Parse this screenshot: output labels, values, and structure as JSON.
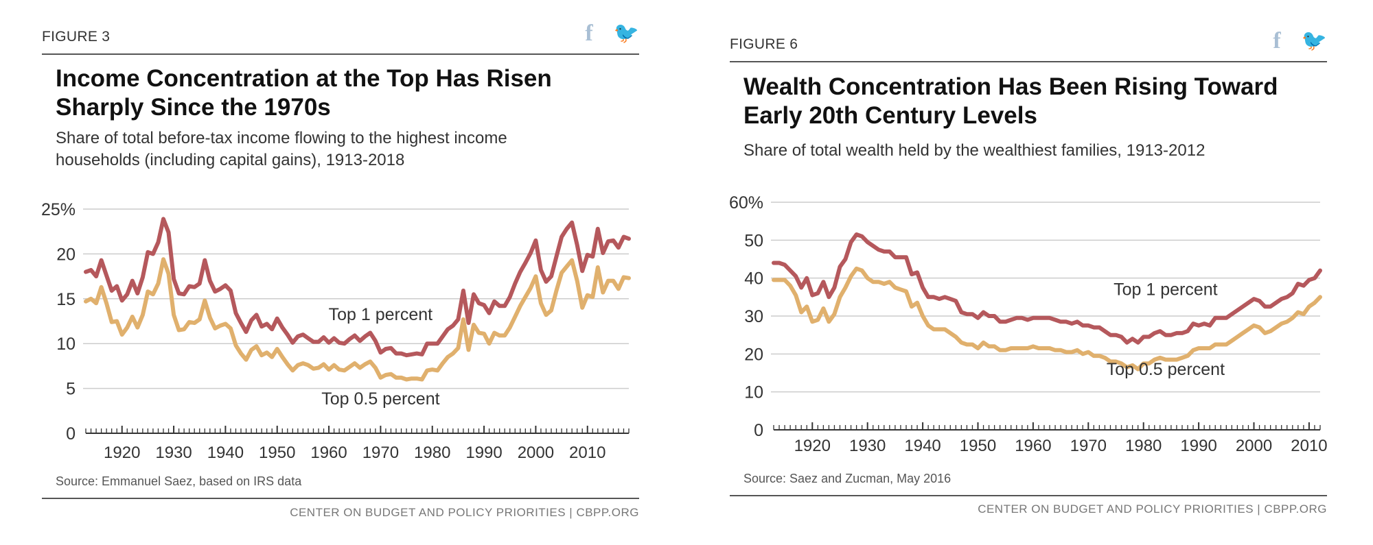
{
  "figures": [
    {
      "label": "FIGURE 3",
      "title": "Income Concentration at the Top Has Risen Sharply Since the 1970s",
      "subtitle": "Share of total before-tax income flowing to the highest income households (including capital gains), 1913-2018",
      "source": "Source: Emmanuel Saez, based on IRS data",
      "footer": "CENTER ON BUDGET AND POLICY PRIORITIES | CBPP.ORG"
    },
    {
      "label": "FIGURE 6",
      "title": "Wealth Concentration Has Been Rising Toward Early 20th Century Levels",
      "subtitle": "Share of total wealth held by the wealthiest families, 1913-2012",
      "source": "Source: Saez and Zucman, May 2016",
      "footer": "CENTER ON BUDGET AND POLICY PRIORITIES | CBPP.ORG"
    }
  ],
  "share_icons": {
    "facebook": "f",
    "twitter": "🐦"
  },
  "colors": {
    "top1": "#b5585c",
    "top05": "#e0b06d",
    "grid": "#cccccc",
    "axis": "#333333",
    "share_icon": "#a9bfd4"
  },
  "chart_data": [
    {
      "type": "line",
      "title": "Income Concentration at the Top Has Risen Sharply Since the 1970s",
      "subtitle": "Share of total before-tax income flowing to the highest income households (including capital gains), 1913-2018",
      "xlabel": "",
      "ylabel": "",
      "xlim": [
        1913,
        2018
      ],
      "ylim": [
        0,
        25
      ],
      "yticks": [
        0,
        5,
        10,
        15,
        20,
        25
      ],
      "ytick_labels": [
        "0",
        "5",
        "10",
        "15",
        "20",
        "25%"
      ],
      "xticks": [
        1920,
        1930,
        1940,
        1950,
        1960,
        1970,
        1980,
        1990,
        2000,
        2010
      ],
      "xtick_labels": [
        "1920",
        "1930",
        "1940",
        "1950",
        "1960",
        "1970",
        "1980",
        "1990",
        "2000",
        "2010"
      ],
      "grid": true,
      "series": [
        {
          "name": "Top 1 percent",
          "x": [
            1913,
            1914,
            1915,
            1916,
            1917,
            1918,
            1919,
            1920,
            1921,
            1922,
            1923,
            1924,
            1925,
            1926,
            1927,
            1928,
            1929,
            1930,
            1931,
            1932,
            1933,
            1934,
            1935,
            1936,
            1937,
            1938,
            1939,
            1940,
            1941,
            1942,
            1943,
            1944,
            1945,
            1946,
            1947,
            1948,
            1949,
            1950,
            1951,
            1952,
            1953,
            1954,
            1955,
            1956,
            1957,
            1958,
            1959,
            1960,
            1961,
            1962,
            1963,
            1964,
            1965,
            1966,
            1967,
            1968,
            1969,
            1970,
            1971,
            1972,
            1973,
            1974,
            1975,
            1976,
            1977,
            1978,
            1979,
            1980,
            1981,
            1982,
            1983,
            1984,
            1985,
            1986,
            1987,
            1988,
            1989,
            1990,
            1991,
            1992,
            1993,
            1994,
            1995,
            1996,
            1997,
            1998,
            1999,
            2000,
            2001,
            2002,
            2003,
            2004,
            2005,
            2006,
            2007,
            2008,
            2009,
            2010,
            2011,
            2012,
            2013,
            2014,
            2015,
            2016,
            2017,
            2018
          ],
          "y": [
            18.0,
            18.2,
            17.5,
            19.3,
            17.6,
            15.9,
            16.4,
            14.8,
            15.5,
            17.0,
            15.6,
            17.4,
            20.2,
            20.0,
            21.3,
            23.9,
            22.4,
            17.2,
            15.6,
            15.5,
            16.4,
            16.3,
            16.7,
            19.3,
            17.0,
            15.8,
            16.1,
            16.5,
            15.9,
            13.4,
            12.3,
            11.3,
            12.6,
            13.2,
            11.9,
            12.2,
            11.6,
            12.8,
            11.8,
            11.0,
            10.1,
            10.8,
            11.0,
            10.6,
            10.2,
            10.2,
            10.7,
            10.1,
            10.6,
            10.1,
            10.0,
            10.5,
            10.9,
            10.3,
            10.8,
            11.2,
            10.3,
            9.0,
            9.4,
            9.5,
            8.9,
            8.9,
            8.7,
            8.8,
            8.9,
            8.8,
            10.0,
            10.0,
            10.0,
            10.8,
            11.6,
            12.0,
            12.7,
            15.9,
            12.3,
            15.5,
            14.5,
            14.3,
            13.4,
            14.7,
            14.2,
            14.2,
            15.2,
            16.7,
            18.0,
            19.0,
            20.1,
            21.5,
            18.2,
            16.9,
            17.5,
            19.7,
            21.9,
            22.8,
            23.5,
            21.0,
            18.1,
            19.9,
            19.7,
            22.8,
            20.1,
            21.4,
            21.5,
            20.7,
            21.9,
            21.7
          ]
        },
        {
          "name": "Top 0.5 percent",
          "x": [
            1913,
            1914,
            1915,
            1916,
            1917,
            1918,
            1919,
            1920,
            1921,
            1922,
            1923,
            1924,
            1925,
            1926,
            1927,
            1928,
            1929,
            1930,
            1931,
            1932,
            1933,
            1934,
            1935,
            1936,
            1937,
            1938,
            1939,
            1940,
            1941,
            1942,
            1943,
            1944,
            1945,
            1946,
            1947,
            1948,
            1949,
            1950,
            1951,
            1952,
            1953,
            1954,
            1955,
            1956,
            1957,
            1958,
            1959,
            1960,
            1961,
            1962,
            1963,
            1964,
            1965,
            1966,
            1967,
            1968,
            1969,
            1970,
            1971,
            1972,
            1973,
            1974,
            1975,
            1976,
            1977,
            1978,
            1979,
            1980,
            1981,
            1982,
            1983,
            1984,
            1985,
            1986,
            1987,
            1988,
            1989,
            1990,
            1991,
            1992,
            1993,
            1994,
            1995,
            1996,
            1997,
            1998,
            1999,
            2000,
            2001,
            2002,
            2003,
            2004,
            2005,
            2006,
            2007,
            2008,
            2009,
            2010,
            2011,
            2012,
            2013,
            2014,
            2015,
            2016,
            2017,
            2018
          ],
          "y": [
            14.7,
            15.0,
            14.5,
            16.3,
            14.5,
            12.4,
            12.5,
            11.0,
            11.8,
            13.0,
            11.8,
            13.2,
            15.8,
            15.5,
            16.7,
            19.4,
            17.8,
            13.2,
            11.5,
            11.6,
            12.4,
            12.3,
            12.7,
            14.8,
            12.9,
            11.7,
            12.0,
            12.2,
            11.7,
            9.8,
            8.9,
            8.2,
            9.3,
            9.7,
            8.7,
            9.0,
            8.5,
            9.4,
            8.5,
            7.7,
            7.0,
            7.6,
            7.8,
            7.6,
            7.2,
            7.3,
            7.7,
            7.1,
            7.6,
            7.1,
            7.0,
            7.4,
            7.8,
            7.3,
            7.7,
            8.0,
            7.3,
            6.2,
            6.5,
            6.6,
            6.2,
            6.2,
            6.0,
            6.1,
            6.1,
            6.0,
            7.0,
            7.1,
            7.0,
            7.8,
            8.5,
            8.9,
            9.5,
            12.7,
            9.3,
            12.1,
            11.2,
            11.1,
            10.0,
            11.2,
            10.9,
            10.9,
            11.8,
            13.0,
            14.2,
            15.2,
            16.2,
            17.5,
            14.5,
            13.2,
            13.7,
            15.9,
            17.9,
            18.6,
            19.3,
            17.0,
            14.0,
            15.4,
            15.2,
            18.5,
            15.7,
            17.0,
            17.0,
            16.1,
            17.4,
            17.3
          ]
        }
      ],
      "annotations": [
        "Top 1 percent",
        "Top 0.5 percent"
      ]
    },
    {
      "type": "line",
      "title": "Wealth Concentration Has Been Rising Toward Early 20th Century Levels",
      "subtitle": "Share of total wealth held by the wealthiest families, 1913-2012",
      "xlabel": "",
      "ylabel": "",
      "xlim": [
        1913,
        2012
      ],
      "ylim": [
        0,
        60
      ],
      "yticks": [
        0,
        10,
        20,
        30,
        40,
        50,
        60
      ],
      "ytick_labels": [
        "0",
        "10",
        "20",
        "30",
        "40",
        "50",
        "60%"
      ],
      "xticks": [
        1920,
        1930,
        1940,
        1950,
        1960,
        1970,
        1980,
        1990,
        2000,
        2010
      ],
      "xtick_labels": [
        "1920",
        "1930",
        "1940",
        "1950",
        "1960",
        "1970",
        "1980",
        "1990",
        "2000",
        "2010"
      ],
      "grid": true,
      "series": [
        {
          "name": "Top 1 percent",
          "x": [
            1913,
            1914,
            1915,
            1916,
            1917,
            1918,
            1919,
            1920,
            1921,
            1922,
            1923,
            1924,
            1925,
            1926,
            1927,
            1928,
            1929,
            1930,
            1931,
            1932,
            1933,
            1934,
            1935,
            1936,
            1937,
            1938,
            1939,
            1940,
            1941,
            1942,
            1943,
            1944,
            1945,
            1946,
            1947,
            1948,
            1949,
            1950,
            1951,
            1952,
            1953,
            1954,
            1955,
            1956,
            1957,
            1958,
            1959,
            1960,
            1961,
            1962,
            1963,
            1964,
            1965,
            1966,
            1967,
            1968,
            1969,
            1970,
            1971,
            1972,
            1973,
            1974,
            1975,
            1976,
            1977,
            1978,
            1979,
            1980,
            1981,
            1982,
            1983,
            1984,
            1985,
            1986,
            1987,
            1988,
            1989,
            1990,
            1991,
            1992,
            1993,
            1994,
            1995,
            1996,
            1997,
            1998,
            1999,
            2000,
            2001,
            2002,
            2003,
            2004,
            2005,
            2006,
            2007,
            2008,
            2009,
            2010,
            2011,
            2012
          ],
          "y": [
            44.0,
            44.0,
            43.5,
            42.0,
            40.5,
            37.5,
            40.0,
            35.5,
            36.0,
            39.0,
            35.0,
            37.5,
            43.0,
            45.0,
            49.5,
            51.5,
            51.0,
            49.5,
            48.5,
            47.5,
            47.0,
            47.0,
            45.5,
            45.5,
            45.5,
            41.0,
            41.5,
            37.5,
            35.0,
            35.0,
            34.5,
            35.0,
            34.5,
            34.0,
            31.0,
            30.5,
            30.5,
            29.5,
            31.0,
            30.0,
            30.0,
            28.5,
            28.5,
            29.0,
            29.5,
            29.5,
            29.0,
            29.5,
            29.5,
            29.5,
            29.5,
            29.0,
            28.5,
            28.5,
            28.0,
            28.5,
            27.5,
            27.5,
            27.0,
            27.0,
            26.0,
            25.0,
            25.0,
            24.5,
            23.0,
            24.0,
            23.0,
            24.5,
            24.5,
            25.5,
            26.0,
            25.0,
            25.0,
            25.5,
            25.5,
            26.0,
            28.0,
            27.5,
            28.0,
            27.5,
            29.5,
            29.5,
            29.5,
            30.5,
            31.5,
            32.5,
            33.5,
            34.5,
            34.0,
            32.5,
            32.5,
            33.5,
            34.5,
            35.0,
            36.0,
            38.5,
            38.0,
            39.5,
            40.0,
            42.0
          ]
        },
        {
          "name": "Top 0.5 percent",
          "x": [
            1913,
            1914,
            1915,
            1916,
            1917,
            1918,
            1919,
            1920,
            1921,
            1922,
            1923,
            1924,
            1925,
            1926,
            1927,
            1928,
            1929,
            1930,
            1931,
            1932,
            1933,
            1934,
            1935,
            1936,
            1937,
            1938,
            1939,
            1940,
            1941,
            1942,
            1943,
            1944,
            1945,
            1946,
            1947,
            1948,
            1949,
            1950,
            1951,
            1952,
            1953,
            1954,
            1955,
            1956,
            1957,
            1958,
            1959,
            1960,
            1961,
            1962,
            1963,
            1964,
            1965,
            1966,
            1967,
            1968,
            1969,
            1970,
            1971,
            1972,
            1973,
            1974,
            1975,
            1976,
            1977,
            1978,
            1979,
            1980,
            1981,
            1982,
            1983,
            1984,
            1985,
            1986,
            1987,
            1988,
            1989,
            1990,
            1991,
            1992,
            1993,
            1994,
            1995,
            1996,
            1997,
            1998,
            1999,
            2000,
            2001,
            2002,
            2003,
            2004,
            2005,
            2006,
            2007,
            2008,
            2009,
            2010,
            2011,
            2012
          ],
          "y": [
            39.5,
            39.5,
            39.5,
            38.0,
            35.5,
            31.0,
            32.5,
            28.5,
            29.0,
            32.0,
            28.5,
            30.5,
            35.0,
            37.5,
            40.5,
            42.5,
            42.0,
            40.0,
            39.0,
            39.0,
            38.5,
            39.0,
            37.5,
            37.0,
            36.5,
            32.5,
            33.5,
            30.0,
            27.5,
            26.5,
            26.5,
            26.5,
            25.5,
            24.5,
            23.0,
            22.5,
            22.5,
            21.5,
            23.0,
            22.0,
            22.0,
            21.0,
            21.0,
            21.5,
            21.5,
            21.5,
            21.5,
            22.0,
            21.5,
            21.5,
            21.5,
            21.0,
            21.0,
            20.5,
            20.5,
            21.0,
            20.0,
            20.5,
            19.5,
            19.5,
            19.0,
            18.0,
            18.0,
            17.5,
            16.5,
            17.0,
            16.0,
            17.5,
            17.5,
            18.5,
            19.0,
            18.5,
            18.5,
            18.5,
            19.0,
            19.5,
            21.0,
            21.5,
            21.5,
            21.5,
            22.5,
            22.5,
            22.5,
            23.5,
            24.5,
            25.5,
            26.5,
            27.5,
            27.0,
            25.5,
            26.0,
            27.0,
            28.0,
            28.5,
            29.5,
            31.0,
            30.5,
            32.5,
            33.5,
            35.0
          ]
        }
      ],
      "annotations": [
        "Top 1 percent",
        "Top 0.5 percent"
      ]
    }
  ]
}
